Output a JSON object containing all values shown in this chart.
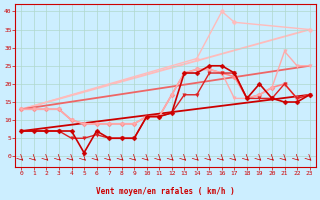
{
  "xlabel": "Vent moyen/en rafales ( km/h )",
  "background_color": "#cceeff",
  "grid_color": "#aaddcc",
  "xlim": [
    -0.5,
    23.5
  ],
  "ylim": [
    -3,
    42
  ],
  "yticks": [
    0,
    5,
    10,
    15,
    20,
    25,
    30,
    35,
    40
  ],
  "xticks": [
    0,
    1,
    2,
    3,
    4,
    5,
    6,
    7,
    8,
    9,
    10,
    11,
    12,
    13,
    14,
    15,
    16,
    17,
    18,
    19,
    20,
    21,
    22,
    23
  ],
  "lines": [
    {
      "x": [
        0,
        1,
        2,
        3,
        4,
        5,
        6,
        7,
        8,
        9,
        10,
        11,
        12,
        13,
        14,
        15,
        16,
        17,
        18,
        19,
        20,
        21,
        22,
        23
      ],
      "y": [
        7,
        7,
        7,
        7,
        7,
        1,
        7,
        5,
        5,
        5,
        11,
        11,
        12,
        23,
        23,
        25,
        25,
        23,
        16,
        20,
        16,
        15,
        15,
        17
      ],
      "color": "#cc0000",
      "lw": 1.2,
      "marker": "D",
      "ms": 2.5,
      "zorder": 5
    },
    {
      "x": [
        0,
        1,
        2,
        3,
        4,
        5,
        6,
        7,
        8,
        9,
        10,
        11,
        12,
        13,
        14,
        15,
        16,
        17,
        18,
        19,
        20,
        21,
        22,
        23
      ],
      "y": [
        7,
        7,
        7,
        7,
        5,
        5,
        6,
        5,
        5,
        5,
        11,
        11,
        12,
        17,
        17,
        23,
        23,
        23,
        16,
        16,
        16,
        20,
        16,
        17
      ],
      "color": "#dd2222",
      "lw": 1.0,
      "marker": "v",
      "ms": 2.5,
      "zorder": 4
    },
    {
      "x": [
        0,
        1,
        2,
        3,
        4,
        5,
        6,
        7,
        8,
        9,
        10,
        11,
        12,
        13,
        14,
        15,
        16,
        17,
        18,
        19,
        20,
        21,
        22,
        23
      ],
      "y": [
        13,
        13,
        13,
        13,
        10,
        9,
        9,
        9,
        9,
        9,
        11,
        11,
        17,
        23,
        24,
        24,
        23,
        22,
        16,
        17,
        19,
        20,
        16,
        17
      ],
      "color": "#ff8888",
      "lw": 1.2,
      "marker": "D",
      "ms": 2.5,
      "zorder": 3
    },
    {
      "x": [
        0,
        1,
        2,
        3,
        4,
        5,
        6,
        7,
        8,
        9,
        10,
        11,
        12,
        13,
        14,
        15,
        16,
        17,
        18,
        19,
        20,
        21,
        22,
        23
      ],
      "y": [
        13,
        13,
        13,
        13,
        10,
        9,
        9,
        9,
        9,
        9,
        11,
        11,
        17,
        23,
        24,
        24,
        23,
        16,
        16,
        17,
        19,
        29,
        25,
        25
      ],
      "color": "#ffaaaa",
      "lw": 1.0,
      "marker": "v",
      "ms": 2.5,
      "zorder": 3
    },
    {
      "x": [
        0,
        14,
        16,
        17,
        23
      ],
      "y": [
        13,
        27,
        40,
        37,
        35
      ],
      "color": "#ffbbbb",
      "lw": 1.0,
      "marker": "D",
      "ms": 2.5,
      "zorder": 2
    },
    {
      "x": [
        0,
        23
      ],
      "y": [
        7,
        17
      ],
      "color": "#cc0000",
      "lw": 1.3,
      "marker": null,
      "ms": 0,
      "zorder": 2
    },
    {
      "x": [
        0,
        23
      ],
      "y": [
        13,
        25
      ],
      "color": "#ee6666",
      "lw": 1.3,
      "marker": null,
      "ms": 0,
      "zorder": 2
    },
    {
      "x": [
        0,
        23
      ],
      "y": [
        13,
        35
      ],
      "color": "#ffbbbb",
      "lw": 1.3,
      "marker": null,
      "ms": 0,
      "zorder": 1
    }
  ]
}
